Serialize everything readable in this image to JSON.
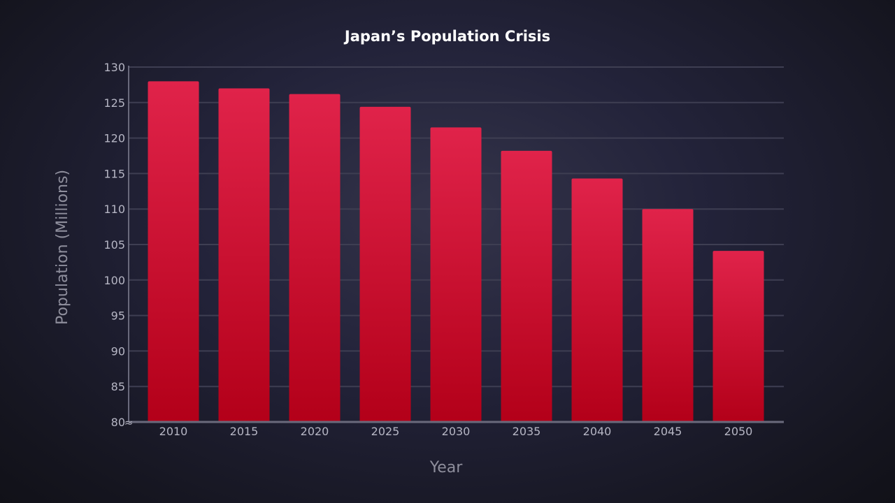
{
  "chart_data": {
    "type": "bar",
    "title": "Japan’s Population Crisis",
    "xlabel": "Year",
    "ylabel": "Population (Millions)",
    "categories": [
      "2010",
      "2015",
      "2020",
      "2025",
      "2030",
      "2035",
      "2040",
      "2045",
      "2050"
    ],
    "values": [
      128.0,
      127.0,
      126.2,
      124.4,
      121.5,
      118.2,
      114.3,
      110.0,
      104.1
    ],
    "ylim": [
      80,
      130
    ],
    "yticks": [
      80,
      85,
      90,
      95,
      100,
      105,
      110,
      115,
      120,
      125,
      130
    ],
    "axis_break_marker": "≈",
    "grid": true,
    "colors": {
      "bar_top": "#e0234a",
      "bar_bottom": "#b30019",
      "grid": "#3e3e52",
      "axis": "#6a6a7c"
    }
  }
}
